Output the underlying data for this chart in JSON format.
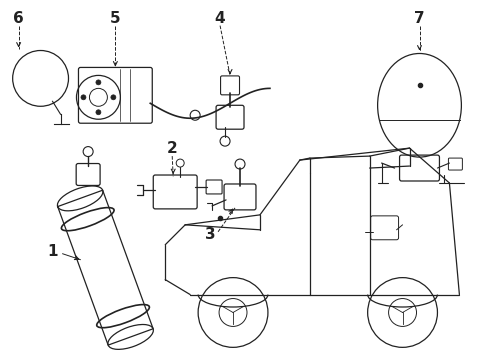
{
  "bg_color": "#ffffff",
  "line_color": "#222222",
  "label_color": "#000000",
  "fig_width": 4.9,
  "fig_height": 3.6,
  "dpi": 100,
  "label_fontsize": 11,
  "lw": 0.9
}
